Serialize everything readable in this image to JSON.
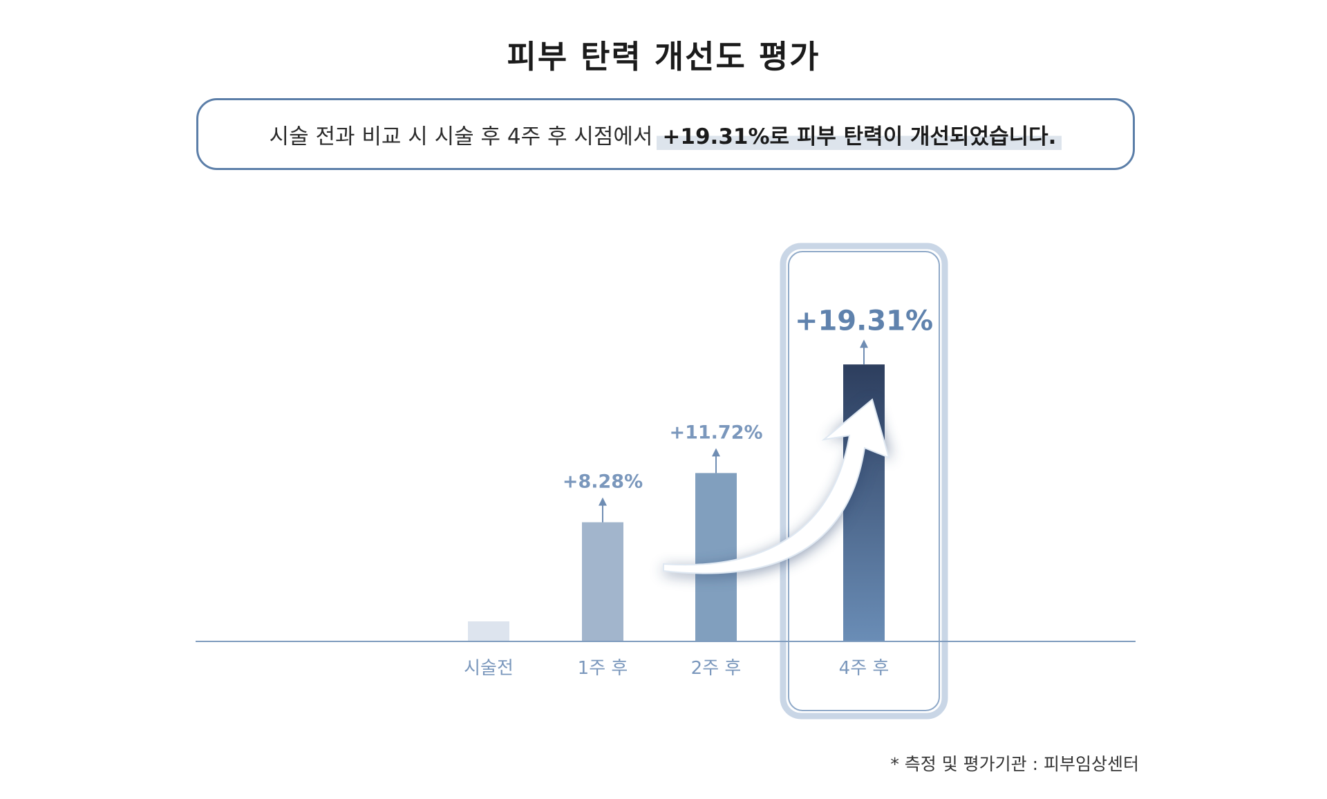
{
  "title": "피부 탄력 개선도 평가",
  "summary": {
    "prefix": "시술 전과 비교 시 시술 후 4주 후 시점에서",
    "highlight": "+19.31%로 피부 탄력이 개선되었습니다."
  },
  "chart_data": {
    "type": "bar",
    "categories": [
      "시술전",
      "1주 후",
      "2주 후",
      "4주 후"
    ],
    "values": [
      0,
      8.28,
      11.72,
      19.31
    ],
    "value_labels": [
      "",
      "+8.28%",
      "+11.72%",
      "+19.31%"
    ],
    "highlighted_category": "4주 후",
    "ylim": [
      0,
      20
    ],
    "grid": false,
    "colors": {
      "baseline_bar": "#dde4ee",
      "bar_1": "#a2b5cc",
      "bar_2": "#819fbe",
      "bar_4_top": "#2d3e5e",
      "bar_4_bottom": "#6a8db6",
      "label": "#7a97bc",
      "highlight_label": "#5f82ad",
      "axis": "#7e9bbd"
    }
  },
  "footnote": "* 측정 및 평가기관 : 피부임상센터"
}
